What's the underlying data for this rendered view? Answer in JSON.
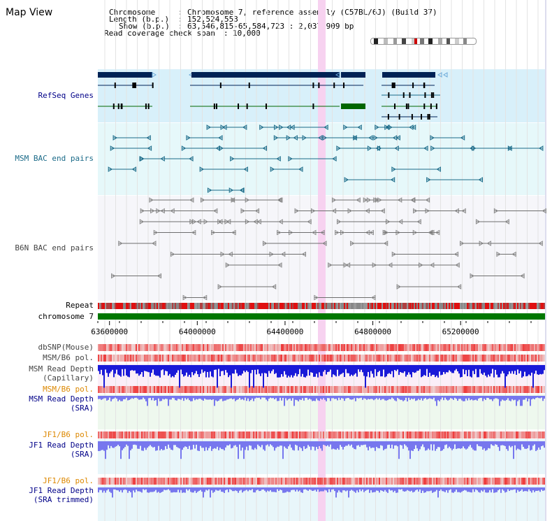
{
  "app": {
    "title": "Map View"
  },
  "info": {
    "chromosome_label": "Chromosome",
    "chromosome_value": "Chromosome 7, reference assembly (C57BL/6J) (Build 37)",
    "length_label": "Length (b.p.)",
    "length_value": "152,524,553",
    "show_label": "Show (b.p.)",
    "show_value": "63,546,815-65,584,723 : 2,037,909 bp",
    "coverage_label": "Read coverage check span",
    "coverage_value": "10,000"
  },
  "tracks": {
    "refseq": "RefSeq Genes",
    "msm_bac": "MSM BAC end pairs",
    "b6n_bac": "B6N BAC end pairs",
    "repeat": "Repeat",
    "chromosome": "chromosome 7",
    "dbsnp": "dbSNP(Mouse)",
    "msm_b6_pol": "MSM/B6 pol.",
    "msm_depth_cap_1": "MSM Read Depth",
    "msm_depth_cap_2": "(Capillary)",
    "msm_b6_pol2": "MSM/B6 pol.",
    "msm_depth_sra_1": "MSM Read Depth",
    "msm_depth_sra_2": "(SRA)",
    "jf1_b6_pol": "JF1/B6 pol.",
    "jf1_depth_sra_1": "JF1 Read Depth",
    "jf1_depth_sra_2": "(SRA)",
    "jf1_b6_pol2": "JF1/B6 pol.",
    "jf1_depth_trim_1": "JF1 Read Depth",
    "jf1_depth_trim_2": "(SRA trimmed)"
  },
  "axis": {
    "ticks": [
      {
        "pos": 63600000,
        "label": "63600000"
      },
      {
        "pos": 64000000,
        "label": "64000000"
      },
      {
        "pos": 64400000,
        "label": "64400000"
      },
      {
        "pos": 64800000,
        "label": "64800000"
      },
      {
        "pos": 65200000,
        "label": "65200000"
      }
    ],
    "range": [
      63546815,
      65584723
    ]
  },
  "colors": {
    "refseq_bg": "#d8f0fa",
    "bac_bg": "#e6f8fa",
    "b6n_bg": "#f6f6fa",
    "highlight": "#f7d2f0",
    "gene_dark": "#002255",
    "gene_green": "#006600",
    "msm_pair": "#1a6a88",
    "b6n_pair": "#6e6e6e",
    "chrom_bar": "#007700",
    "label_blue": "#000088",
    "label_orange": "#dd8800",
    "label_gray": "#444444",
    "label_teal": "#1a6a88",
    "depth_blue": "#1a1ad8",
    "depth_light": "#7777ee"
  },
  "icons": {
    "chromosome_ideogram": "chromosome-ideogram-icon"
  }
}
